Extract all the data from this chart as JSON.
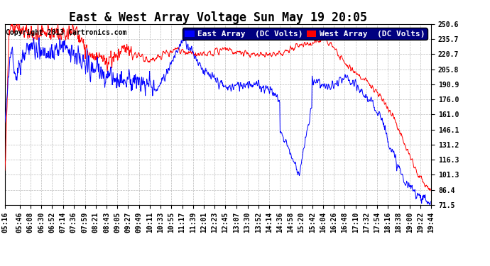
{
  "title": "East & West Array Voltage Sun May 19 20:05",
  "copyright": "Copyright 2013 Cartronics.com",
  "legend_east": "East Array  (DC Volts)",
  "legend_west": "West Array  (DC Volts)",
  "color_east": "#0000ff",
  "color_west": "#ff0000",
  "bg_color": "#ffffff",
  "plot_bg": "#ffffff",
  "yticks": [
    71.5,
    86.4,
    101.3,
    116.3,
    131.2,
    146.1,
    161.0,
    176.0,
    190.9,
    205.8,
    220.7,
    235.7,
    250.6
  ],
  "ytick_labels": [
    "71.5",
    "86.4",
    "101.3",
    "116.3",
    "131.2",
    "146.1",
    "161.0",
    "176.0",
    "190.9",
    "205.8",
    "220.7",
    "235.7",
    "250.6"
  ],
  "ymin": 71.5,
  "ymax": 250.6,
  "xtick_labels": [
    "05:16",
    "05:46",
    "06:08",
    "06:30",
    "06:52",
    "07:14",
    "07:36",
    "07:59",
    "08:21",
    "08:43",
    "09:05",
    "09:27",
    "09:49",
    "10:11",
    "10:33",
    "10:55",
    "11:17",
    "11:39",
    "12:01",
    "12:23",
    "12:45",
    "13:07",
    "13:30",
    "13:52",
    "14:14",
    "14:36",
    "14:58",
    "15:20",
    "15:42",
    "16:04",
    "16:26",
    "16:48",
    "17:10",
    "17:32",
    "17:54",
    "18:16",
    "18:38",
    "19:00",
    "19:22",
    "19:44"
  ],
  "title_fontsize": 12,
  "copyright_fontsize": 7,
  "legend_fontsize": 8,
  "tick_fontsize": 7,
  "grid_color": "#aaaaaa",
  "grid_style": "--",
  "grid_alpha": 0.8,
  "legend_bg": "#000080",
  "legend_text_color": "#ffffff"
}
